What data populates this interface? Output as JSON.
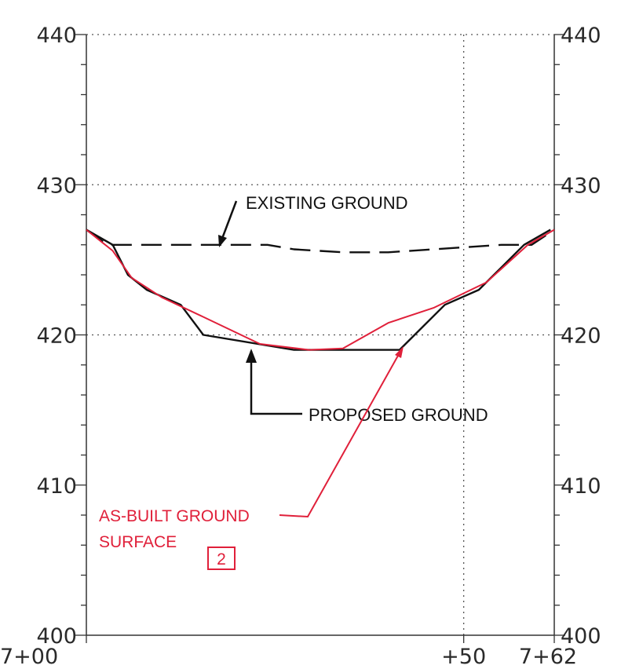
{
  "chart_data": {
    "type": "line",
    "x_unit": "station offset (ft) from 7+00",
    "xlim": [
      0,
      62
    ],
    "ylim": [
      400,
      440
    ],
    "y_ticks": [
      400,
      410,
      420,
      430,
      440
    ],
    "y_tick_labels_left": [
      "400",
      "410",
      "420",
      "430",
      "440"
    ],
    "y_tick_labels_right": [
      "400",
      "410",
      "420",
      "430",
      "440"
    ],
    "x_tick_labels": [
      {
        "x": 0,
        "label": "7+00"
      },
      {
        "x": 50,
        "label": "+50"
      },
      {
        "x": 62,
        "label": "7+62"
      }
    ],
    "grid": {
      "horizontal_dotted": [
        420,
        430,
        440
      ],
      "vertical_dotted": [
        50
      ]
    },
    "series": [
      {
        "name": "EXISTING GROUND",
        "style": "dashed",
        "color": "#111111",
        "points": [
          [
            0,
            427
          ],
          [
            2.8,
            426
          ],
          [
            14,
            426
          ],
          [
            24,
            426
          ],
          [
            27.5,
            425.7
          ],
          [
            34,
            425.5
          ],
          [
            40,
            425.5
          ],
          [
            49,
            425.8
          ],
          [
            55,
            426
          ],
          [
            59,
            426
          ],
          [
            62,
            427
          ]
        ]
      },
      {
        "name": "PROPOSED GROUND",
        "style": "solid",
        "color": "#111111",
        "points": [
          [
            0,
            427
          ],
          [
            3.5,
            426
          ],
          [
            5.5,
            424
          ],
          [
            8,
            423
          ],
          [
            12.5,
            422
          ],
          [
            15.5,
            420
          ],
          [
            27.5,
            419
          ],
          [
            41.5,
            419
          ],
          [
            47.5,
            422
          ],
          [
            52,
            423
          ],
          [
            58,
            426
          ],
          [
            61.5,
            427
          ]
        ]
      },
      {
        "name": "AS-BUILT GROUND SURFACE",
        "style": "solid",
        "color": "#e0203a",
        "points": [
          [
            0,
            427
          ],
          [
            3.5,
            425.6
          ],
          [
            6,
            423.8
          ],
          [
            10,
            422.5
          ],
          [
            15.5,
            421.2
          ],
          [
            23,
            419.4
          ],
          [
            29.5,
            419.0
          ],
          [
            34,
            419.1
          ],
          [
            40,
            420.8
          ],
          [
            46,
            421.8
          ],
          [
            53,
            423.5
          ],
          [
            58.5,
            426
          ],
          [
            62,
            427
          ]
        ]
      }
    ],
    "annotations": {
      "existing_ground": "EXISTING GROUND",
      "proposed_ground": "PROPOSED GROUND",
      "as_built_line1": "AS-BUILT GROUND",
      "as_built_line2": "SURFACE",
      "note_box": "2"
    }
  }
}
